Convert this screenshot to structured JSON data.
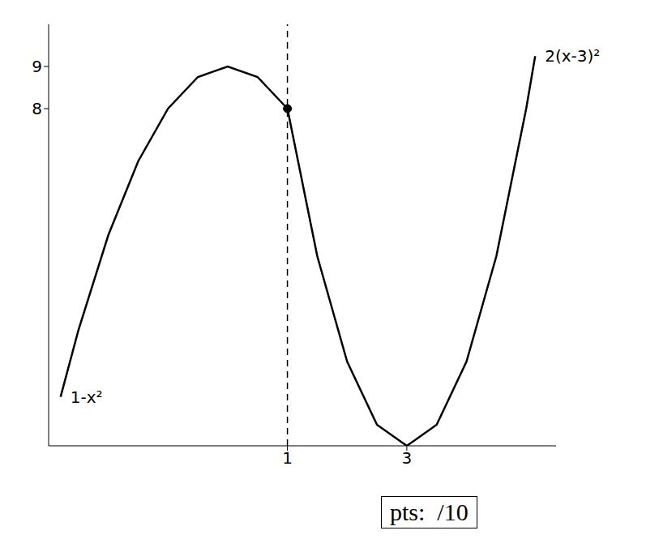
{
  "chart_data": {
    "type": "line",
    "series": [
      {
        "name": "1-x²",
        "color": "#000000",
        "x": [
          -2.8,
          -2.5,
          -2,
          -1.5,
          -1,
          -0.5,
          0,
          0.5,
          1
        ],
        "values": [
          1.16,
          2.75,
          5,
          6.75,
          8,
          8.75,
          9,
          8.75,
          8
        ]
      },
      {
        "name": "2(x-3)²",
        "color": "#000000",
        "x": [
          1,
          1.5,
          2,
          2.5,
          3,
          3.5,
          4,
          4.5,
          5,
          5.15
        ],
        "values": [
          8,
          4.5,
          2,
          0.5,
          0,
          0.5,
          2,
          4.5,
          8,
          9.245
        ]
      }
    ],
    "xlim": [
      -3,
      5.5
    ],
    "ylim": [
      0,
      10
    ],
    "xticks": [
      1,
      3
    ],
    "yticks": [
      8,
      9
    ],
    "grid": false,
    "reference_line": {
      "x": 1,
      "line_style": "dashed"
    },
    "marked_point": {
      "x": 1,
      "y": 8
    },
    "annotations": [
      "pts:  /10"
    ]
  }
}
